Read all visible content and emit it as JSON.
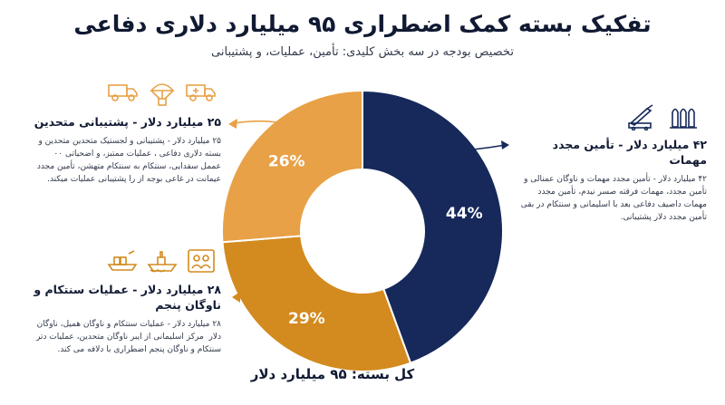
{
  "title": "تفکیک بسته کمک اضطراری ۹۵ میلیارد دلاری دفاعی",
  "subtitle": "تخصیص بودجه در سه بخش کلیدی: تأمین، عملیات، و پشتیبانی",
  "chart_data": {
    "type": "pie",
    "categories": [
      "۴۲ میلیارد دلار - تأمین مجدد مهمات",
      "۲۸ میلیارد دلار - عملیات سنتکام و ناوگان پنجم",
      "۲۵ میلیارد دلار - پشتیبانی متحدین"
    ],
    "values": [
      44,
      29,
      26
    ],
    "value_labels": [
      "44%",
      "29%",
      "26%"
    ],
    "colors": [
      "#16295a",
      "#d38a1e",
      "#e8a146"
    ]
  },
  "segments": {
    "ammo": {
      "heading": "۴۲ میلیارد دلار - تأمین مجدد مهمات",
      "body": "۴۲ میلیارد دلار - تأمین مجدد مهمات و ناوگان عمنالی و تأمین مجدد، مهمات فرقته صسر نیدم، تأمین مجدد مهمات داصیف دفاعی بعد با اسلیمانی و سنتکام در بقی تأمین مجدد دلار پشتیبانی."
    },
    "ops": {
      "heading": "۲۸ میلیارد دلار - عملیات سنتکام و ناوگان پنجم",
      "body": "۲۸ میلیارد دلار - عملیات سنتکام و ناوگان همیل، ناوگان دلار ‌‌ مرکز اسلیمانی از ایبر ناوگان متحدین، عملیات دتر سنتکام و ناوگان پنجم اضطراری با دلافه می کند."
    },
    "allies": {
      "heading": "۲۵ میلیارد دلار - پشتیبانی متحدین",
      "body": "۲۵ میلیارد دلار - پشتیبانی و لجستیک متحدین متحدین و بسته دلاری دفاعی ، عملیات ممتبز، و اضحیاتی ۰۰ عممل سفدایی، سنتکام به سنتکام متهشن، تأمین مجدد عیمانت در غاعی بوجه از را پشتیبانی عملیات میکند."
    }
  },
  "total": "کل بسته: ۹۵ میلیارد دلار",
  "icons": {
    "allies": [
      "truck-icon",
      "parachute-aid-icon",
      "medical-truck-icon"
    ],
    "ops": [
      "cargo-ship-icon",
      "aircraft-carrier-icon",
      "personnel-icon"
    ],
    "ammo": [
      "missile-launcher-icon",
      "ammunition-icon"
    ]
  }
}
